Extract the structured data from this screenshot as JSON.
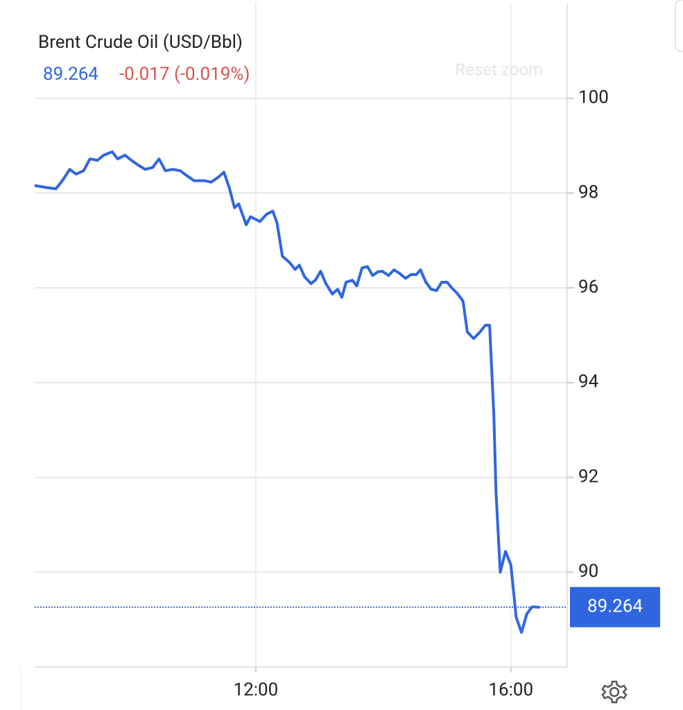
{
  "chart_data": {
    "type": "line",
    "title": "Brent Crude Oil (USD/Bbl)",
    "price": 89.264,
    "change": "-0.017 (-0.019%)",
    "reset_zoom": "Reset zoom",
    "last_value": 89.264,
    "x": [
      512,
      522,
      532,
      538,
      545,
      551,
      558,
      564,
      571,
      577,
      585,
      590,
      597,
      603,
      610,
      616,
      623,
      629,
      635,
      642,
      649,
      655,
      662,
      672,
      678,
      685,
      690,
      695,
      700,
      704,
      711,
      715,
      724,
      730,
      736,
      740,
      745,
      752,
      757,
      761,
      766,
      772,
      776,
      781,
      786,
      792,
      797,
      801,
      805,
      811,
      815,
      820,
      825,
      830,
      835,
      839,
      845,
      850,
      855,
      861,
      866,
      871,
      875,
      880,
      885,
      890,
      895,
      900,
      904,
      910,
      915,
      919,
      925,
      931,
      936,
      940,
      944,
      946,
      950,
      955,
      960,
      965,
      970,
      975,
      980,
      987
    ],
    "series": [
      {
        "name": "Brent Crude Oil",
        "color": "#2f66e0",
        "values": [
          98.16,
          98.12,
          98.09,
          98.26,
          98.5,
          98.4,
          98.47,
          98.72,
          98.69,
          98.8,
          98.87,
          98.72,
          98.8,
          98.69,
          98.58,
          98.5,
          98.54,
          98.72,
          98.47,
          98.5,
          98.47,
          98.37,
          98.26,
          98.26,
          98.23,
          98.34,
          98.44,
          98.12,
          97.69,
          97.77,
          97.33,
          97.5,
          97.4,
          97.55,
          97.62,
          97.37,
          96.67,
          96.53,
          96.39,
          96.48,
          96.23,
          96.09,
          96.16,
          96.35,
          96.09,
          95.87,
          95.97,
          95.8,
          96.12,
          96.16,
          96.04,
          96.42,
          96.45,
          96.26,
          96.34,
          96.35,
          96.26,
          96.38,
          96.31,
          96.2,
          96.28,
          96.28,
          96.38,
          96.12,
          95.97,
          95.94,
          96.12,
          96.12,
          96.01,
          95.87,
          95.72,
          95.07,
          94.93,
          95.07,
          95.21,
          95.21,
          93.31,
          91.7,
          90.0,
          90.44,
          90.15,
          89.05,
          88.73,
          89.12,
          89.27,
          89.26
        ]
      }
    ],
    "xlim": [
      512,
      1013
    ],
    "xticks": [
      {
        "value": 720,
        "label": "12:00"
      },
      {
        "value": 960,
        "label": "16:00"
      }
    ],
    "ylim": [
      88,
      102
    ],
    "yticks": [
      90,
      92,
      94,
      96,
      98,
      100
    ],
    "grid": true
  }
}
